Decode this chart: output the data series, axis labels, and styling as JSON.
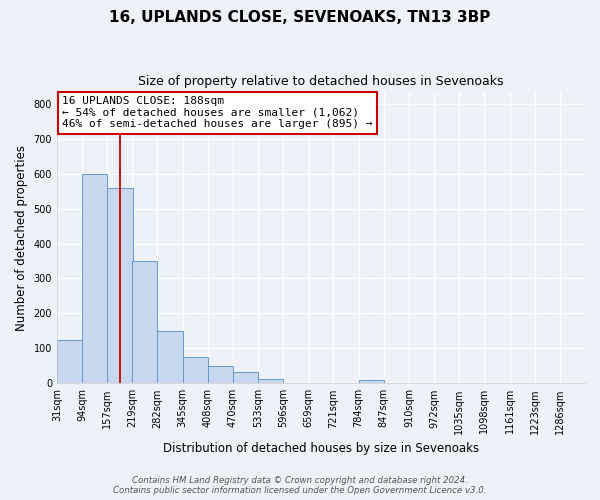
{
  "title": "16, UPLANDS CLOSE, SEVENOAKS, TN13 3BP",
  "subtitle": "Size of property relative to detached houses in Sevenoaks",
  "xlabel": "Distribution of detached houses by size in Sevenoaks",
  "ylabel": "Number of detached properties",
  "bin_labels": [
    "31sqm",
    "94sqm",
    "157sqm",
    "219sqm",
    "282sqm",
    "345sqm",
    "408sqm",
    "470sqm",
    "533sqm",
    "596sqm",
    "659sqm",
    "721sqm",
    "784sqm",
    "847sqm",
    "910sqm",
    "972sqm",
    "1035sqm",
    "1098sqm",
    "1161sqm",
    "1223sqm",
    "1286sqm"
  ],
  "bar_heights": [
    125,
    600,
    558,
    350,
    150,
    75,
    50,
    33,
    13,
    0,
    0,
    0,
    10,
    0,
    0,
    0,
    0,
    0,
    0,
    0,
    0
  ],
  "bar_color": "#c8d8ee",
  "bar_edge_color": "#6699cc",
  "annotation_line1": "16 UPLANDS CLOSE: 188sqm",
  "annotation_line2": "← 54% of detached houses are smaller (1,062)",
  "annotation_line3": "46% of semi-detached houses are larger (895) →",
  "vline_x": 188,
  "vline_color": "#cc0000",
  "bin_edges": [
    31,
    94,
    157,
    219,
    282,
    345,
    408,
    470,
    533,
    596,
    659,
    721,
    784,
    847,
    910,
    972,
    1035,
    1098,
    1161,
    1223,
    1286
  ],
  "bin_width": 63,
  "ylim": [
    0,
    830
  ],
  "footer_line1": "Contains HM Land Registry data © Crown copyright and database right 2024.",
  "footer_line2": "Contains public sector information licensed under the Open Government Licence v3.0.",
  "bg_color": "#eef2f8",
  "grid_color": "#ffffff",
  "title_fontsize": 11,
  "subtitle_fontsize": 9,
  "label_fontsize": 8.5,
  "tick_fontsize": 7,
  "annotation_fontsize": 8,
  "annotation_box_color": "#ffffff",
  "annotation_box_edge": "#cc0000"
}
